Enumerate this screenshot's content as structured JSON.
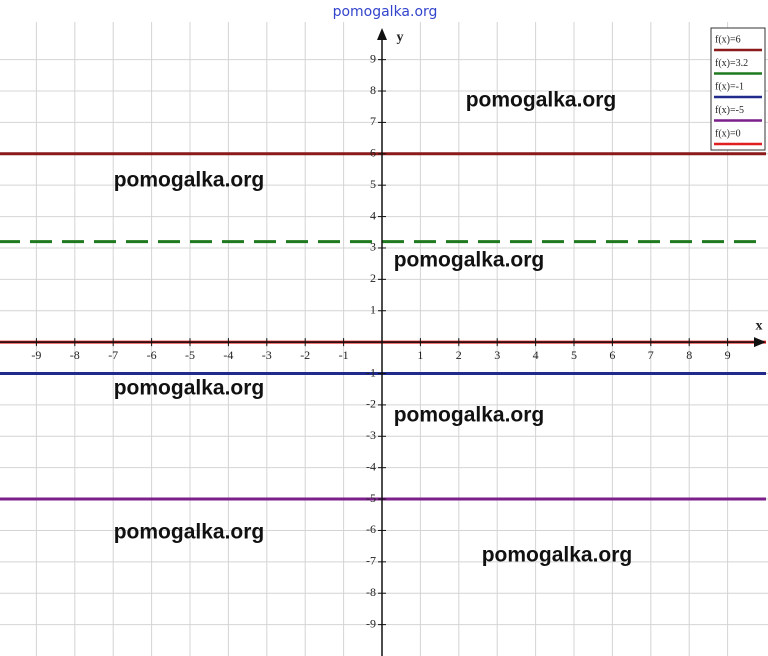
{
  "chart_data": {
    "type": "line",
    "watermark": "pomogalka.org",
    "annotations": [
      "pomogalka.org",
      "pomogalka.org",
      "pomogalka.org",
      "pomogalka.org",
      "pomogalka.org",
      "pomogalka.org",
      "pomogalka.org"
    ],
    "xlabel": "x",
    "ylabel": "y",
    "x": [
      -10,
      10
    ],
    "series": [
      {
        "name": "f(x)=6",
        "color": "#8b1a1a",
        "values": [
          6,
          6
        ],
        "dashed": false
      },
      {
        "name": "f(x)=3.2",
        "color": "#1f7a1f",
        "values": [
          3.2,
          3.2
        ],
        "dashed": true
      },
      {
        "name": "f(x)=-1",
        "color": "#1f2a8a",
        "values": [
          -1,
          -1
        ],
        "dashed": false
      },
      {
        "name": "f(x)=-5",
        "color": "#7b1f8a",
        "values": [
          -5,
          -5
        ],
        "dashed": false
      },
      {
        "name": "f(x)=0",
        "color": "#e02020",
        "values": [
          0,
          0
        ],
        "dashed": false
      }
    ],
    "xlim": [
      -10,
      10
    ],
    "ylim": [
      -10,
      10.9
    ],
    "xticks": [
      -9,
      -8,
      -7,
      -6,
      -5,
      -4,
      -3,
      -2,
      -1,
      1,
      2,
      3,
      4,
      5,
      6,
      7,
      8,
      9
    ],
    "yticks": [
      -9,
      -8,
      -7,
      -6,
      -5,
      -4,
      -3,
      -2,
      -1,
      1,
      2,
      3,
      4,
      5,
      6,
      7,
      8,
      9
    ],
    "grid": true
  }
}
